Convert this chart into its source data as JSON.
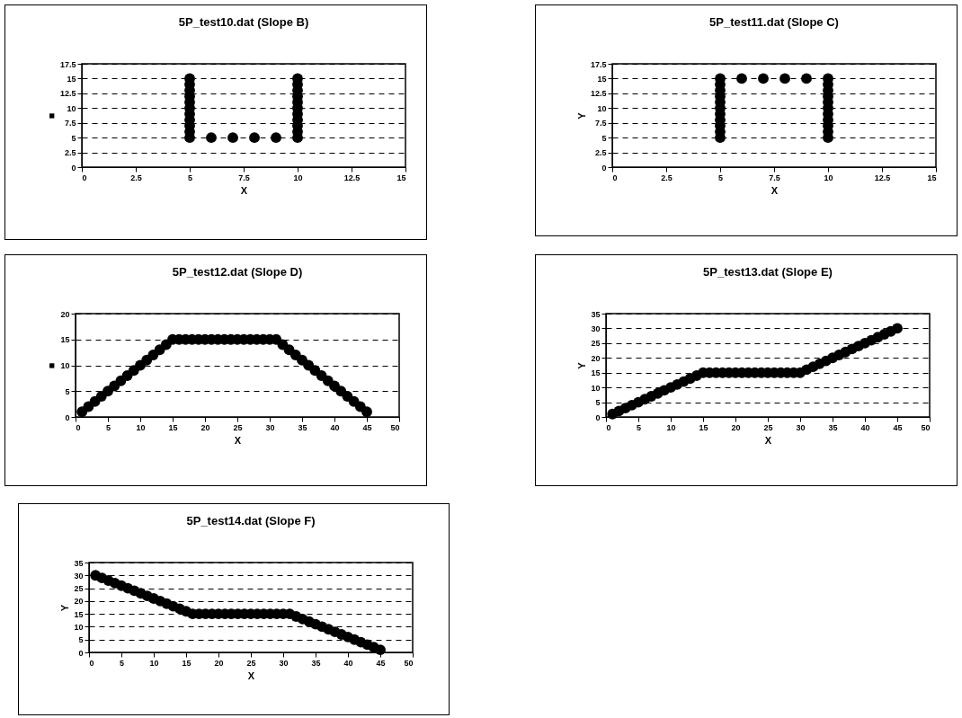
{
  "chart_data": [
    {
      "type": "scatter",
      "title": "5P_test10.dat (Slope B)",
      "xlabel": "X",
      "ylabel": "■",
      "series": [
        {
          "color": "#000000",
          "x": [
            5,
            5,
            5,
            5,
            5,
            5,
            5,
            5,
            5,
            5,
            5,
            6,
            7,
            8,
            9,
            10,
            10,
            10,
            10,
            10,
            10,
            10,
            10,
            10,
            10,
            10
          ],
          "values": [
            5,
            6,
            7,
            8,
            9,
            10,
            11,
            12,
            13,
            14,
            15,
            5,
            5,
            5,
            5,
            5,
            6,
            7,
            8,
            9,
            10,
            11,
            12,
            13,
            14,
            15
          ]
        }
      ],
      "xlim": [
        0,
        15
      ],
      "xticks": [
        0,
        2.5,
        5,
        7.5,
        10,
        12.5,
        15
      ],
      "ylim": [
        0,
        17.5
      ],
      "yticks": [
        0,
        2.5,
        5,
        7.5,
        10,
        12.5,
        15,
        17.5
      ],
      "grid": "y",
      "marker": "circle"
    },
    {
      "type": "scatter",
      "title": "5P_test11.dat (Slope C)",
      "xlabel": "X",
      "ylabel": "Y",
      "series": [
        {
          "color": "#000000",
          "x": [
            5,
            5,
            5,
            5,
            5,
            5,
            5,
            5,
            5,
            5,
            5,
            6,
            7,
            8,
            9,
            10,
            10,
            10,
            10,
            10,
            10,
            10,
            10,
            10,
            10,
            10
          ],
          "values": [
            5,
            6,
            7,
            8,
            9,
            10,
            11,
            12,
            13,
            14,
            15,
            15,
            15,
            15,
            15,
            5,
            6,
            7,
            8,
            9,
            10,
            11,
            12,
            13,
            14,
            15
          ]
        }
      ],
      "xlim": [
        0,
        15
      ],
      "xticks": [
        0,
        2.5,
        5,
        7.5,
        10,
        12.5,
        15
      ],
      "ylim": [
        0,
        17.5
      ],
      "yticks": [
        0,
        2.5,
        5,
        7.5,
        10,
        12.5,
        15,
        17.5
      ],
      "grid": "y",
      "marker": "circle"
    },
    {
      "type": "scatter",
      "title": "5P_test12.dat (Slope D)",
      "xlabel": "X",
      "ylabel": "■",
      "series": [
        {
          "color": "#000000",
          "x": [
            1,
            2,
            3,
            4,
            5,
            6,
            7,
            8,
            9,
            10,
            11,
            12,
            13,
            14,
            15,
            16,
            17,
            18,
            19,
            20,
            21,
            22,
            23,
            24,
            25,
            26,
            27,
            28,
            29,
            30,
            31,
            32,
            33,
            34,
            35,
            36,
            37,
            38,
            39,
            40,
            41,
            42,
            43,
            44,
            45
          ],
          "values": [
            1,
            2,
            3,
            4,
            5,
            6,
            7,
            8,
            9,
            10,
            11,
            12,
            13,
            14,
            15,
            15,
            15,
            15,
            15,
            15,
            15,
            15,
            15,
            15,
            15,
            15,
            15,
            15,
            15,
            15,
            15,
            14,
            13,
            12,
            11,
            10,
            9,
            8,
            7,
            6,
            5,
            4,
            3,
            2,
            1
          ]
        }
      ],
      "xlim": [
        0,
        50
      ],
      "xticks": [
        0,
        5,
        10,
        15,
        20,
        25,
        30,
        35,
        40,
        45,
        50
      ],
      "ylim": [
        0,
        20
      ],
      "yticks": [
        0,
        5,
        10,
        15,
        20
      ],
      "grid": "y",
      "marker": "circle"
    },
    {
      "type": "scatter",
      "title": "5P_test13.dat (Slope E)",
      "xlabel": "X",
      "ylabel": "Y",
      "series": [
        {
          "color": "#000000",
          "x": [
            1,
            2,
            3,
            4,
            5,
            6,
            7,
            8,
            9,
            10,
            11,
            12,
            13,
            14,
            15,
            16,
            17,
            18,
            19,
            20,
            21,
            22,
            23,
            24,
            25,
            26,
            27,
            28,
            29,
            30,
            31,
            32,
            33,
            34,
            35,
            36,
            37,
            38,
            39,
            40,
            41,
            42,
            43,
            44,
            45
          ],
          "values": [
            1,
            2,
            3,
            4,
            5,
            6,
            7,
            8,
            9,
            10,
            11,
            12,
            13,
            14,
            15,
            15,
            15,
            15,
            15,
            15,
            15,
            15,
            15,
            15,
            15,
            15,
            15,
            15,
            15,
            15,
            16,
            17,
            18,
            19,
            20,
            21,
            22,
            23,
            24,
            25,
            26,
            27,
            28,
            29,
            30
          ]
        }
      ],
      "xlim": [
        0,
        50
      ],
      "xticks": [
        0,
        5,
        10,
        15,
        20,
        25,
        30,
        35,
        40,
        45,
        50
      ],
      "ylim": [
        0,
        35
      ],
      "yticks": [
        0,
        5,
        10,
        15,
        20,
        25,
        30,
        35
      ],
      "grid": "y",
      "marker": "circle"
    },
    {
      "type": "scatter",
      "title": "5P_test14.dat (Slope F)",
      "xlabel": "X",
      "ylabel": "Y",
      "series": [
        {
          "color": "#000000",
          "x": [
            1,
            2,
            3,
            4,
            5,
            6,
            7,
            8,
            9,
            10,
            11,
            12,
            13,
            14,
            15,
            16,
            17,
            18,
            19,
            20,
            21,
            22,
            23,
            24,
            25,
            26,
            27,
            28,
            29,
            30,
            31,
            32,
            33,
            34,
            35,
            36,
            37,
            38,
            39,
            40,
            41,
            42,
            43,
            44,
            45
          ],
          "values": [
            30,
            29,
            28,
            27,
            26,
            25,
            24,
            23,
            22,
            21,
            20,
            19,
            18,
            17,
            16,
            15,
            15,
            15,
            15,
            15,
            15,
            15,
            15,
            15,
            15,
            15,
            15,
            15,
            15,
            15,
            15,
            14,
            13,
            12,
            11,
            10,
            9,
            8,
            7,
            6,
            5,
            4,
            3,
            2,
            1
          ]
        }
      ],
      "xlim": [
        0,
        50
      ],
      "xticks": [
        0,
        5,
        10,
        15,
        20,
        25,
        30,
        35,
        40,
        45,
        50
      ],
      "ylim": [
        0,
        35
      ],
      "yticks": [
        0,
        5,
        10,
        15,
        20,
        25,
        30,
        35
      ],
      "grid": "y",
      "marker": "circle"
    }
  ]
}
